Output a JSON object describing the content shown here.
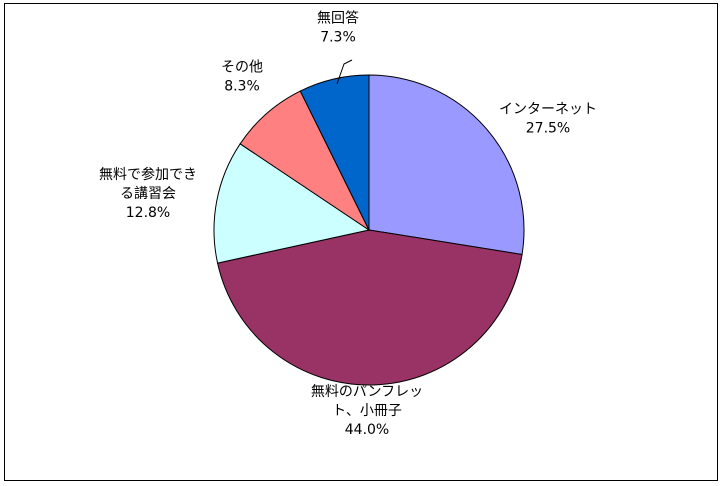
{
  "chart_data": {
    "type": "pie",
    "start_angle_deg": 0,
    "direction": "clockwise",
    "slices": [
      {
        "label_lines": [
          "インターネット"
        ],
        "value": 27.5,
        "value_text": "27.5%",
        "color": "#9999FF"
      },
      {
        "label_lines": [
          "無料のパンフレッ",
          "ト、小冊子"
        ],
        "value": 44.0,
        "value_text": "44.0%",
        "color": "#993366"
      },
      {
        "label_lines": [
          "無料で参加でき",
          "る講習会"
        ],
        "value": 12.8,
        "value_text": "12.8%",
        "color": "#CCFFFF"
      },
      {
        "label_lines": [
          "その他"
        ],
        "value": 8.3,
        "value_text": "8.3%",
        "color": "#FF8080"
      },
      {
        "label_lines": [
          "無回答"
        ],
        "value": 7.3,
        "value_text": "7.3%",
        "color": "#0066CC"
      }
    ]
  }
}
